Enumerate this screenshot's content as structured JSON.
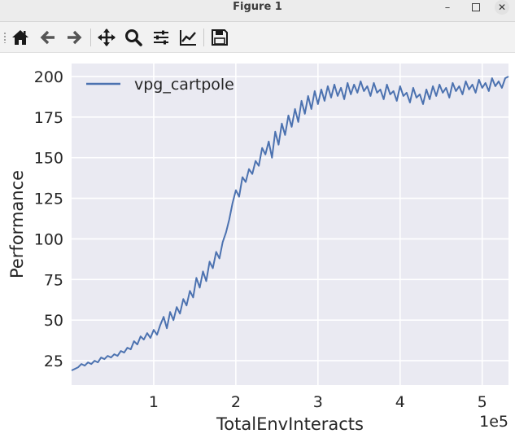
{
  "window": {
    "title": "Figure 1",
    "controls": [
      "minimize-icon",
      "maximize-icon",
      "close-icon"
    ]
  },
  "toolbar": {
    "buttons": [
      {
        "name": "home-button",
        "icon": "home-icon"
      },
      {
        "name": "back-button",
        "icon": "arrow-left-icon"
      },
      {
        "name": "forward-button",
        "icon": "arrow-right-icon"
      },
      {
        "name": "pan-button",
        "icon": "move-icon"
      },
      {
        "name": "zoom-button",
        "icon": "magnifier-icon"
      },
      {
        "name": "subplots-button",
        "icon": "sliders-icon"
      },
      {
        "name": "edit-axes-button",
        "icon": "line-chart-icon"
      },
      {
        "name": "save-button",
        "icon": "floppy-disk-icon"
      }
    ]
  },
  "colors": {
    "plot_background": "#EAEAF2",
    "grid": "#FFFFFF",
    "line": "#4C72B0",
    "text": "#262626"
  },
  "chart_data": {
    "type": "line",
    "title": "",
    "xlabel": "TotalEnvInteracts",
    "ylabel": "Performance",
    "x_offset_label": "1e5",
    "xlim": [
      0.0,
      5.32
    ],
    "ylim": [
      10,
      208
    ],
    "xticks": [
      1,
      2,
      3,
      4,
      5
    ],
    "xtick_labels": [
      "1",
      "2",
      "3",
      "4",
      "5"
    ],
    "yticks": [
      25,
      50,
      75,
      100,
      125,
      150,
      175,
      200
    ],
    "ytick_labels": [
      "25",
      "50",
      "75",
      "100",
      "125",
      "150",
      "175",
      "200"
    ],
    "grid": true,
    "legend": {
      "position": "upper-left",
      "entries": [
        "vpg_cartpole"
      ]
    },
    "series": [
      {
        "name": "vpg_cartpole",
        "x": [
          0.0,
          0.04,
          0.08,
          0.12,
          0.16,
          0.2,
          0.24,
          0.28,
          0.32,
          0.36,
          0.4,
          0.44,
          0.48,
          0.52,
          0.56,
          0.6,
          0.64,
          0.68,
          0.72,
          0.76,
          0.8,
          0.84,
          0.88,
          0.92,
          0.96,
          1.0,
          1.04,
          1.08,
          1.12,
          1.16,
          1.2,
          1.24,
          1.28,
          1.32,
          1.36,
          1.4,
          1.44,
          1.48,
          1.52,
          1.56,
          1.6,
          1.64,
          1.68,
          1.72,
          1.76,
          1.8,
          1.84,
          1.88,
          1.92,
          1.96,
          2.0,
          2.04,
          2.08,
          2.12,
          2.16,
          2.2,
          2.24,
          2.28,
          2.32,
          2.36,
          2.4,
          2.44,
          2.48,
          2.52,
          2.56,
          2.6,
          2.64,
          2.68,
          2.72,
          2.76,
          2.8,
          2.84,
          2.88,
          2.92,
          2.96,
          3.0,
          3.04,
          3.08,
          3.12,
          3.16,
          3.2,
          3.24,
          3.28,
          3.32,
          3.36,
          3.4,
          3.44,
          3.48,
          3.52,
          3.56,
          3.6,
          3.64,
          3.68,
          3.72,
          3.76,
          3.8,
          3.84,
          3.88,
          3.92,
          3.96,
          4.0,
          4.04,
          4.08,
          4.12,
          4.16,
          4.2,
          4.24,
          4.28,
          4.32,
          4.36,
          4.4,
          4.44,
          4.48,
          4.52,
          4.56,
          4.6,
          4.64,
          4.68,
          4.72,
          4.76,
          4.8,
          4.84,
          4.88,
          4.92,
          4.96,
          5.0,
          5.04,
          5.08,
          5.12,
          5.16,
          5.2,
          5.24,
          5.28,
          5.32
        ],
        "y": [
          19,
          20,
          21,
          23,
          22,
          24,
          23,
          25,
          24,
          27,
          26,
          28,
          27,
          29,
          28,
          31,
          30,
          33,
          32,
          37,
          35,
          40,
          38,
          42,
          39,
          44,
          41,
          47,
          52,
          45,
          55,
          50,
          58,
          54,
          63,
          59,
          68,
          64,
          76,
          70,
          80,
          74,
          86,
          82,
          92,
          88,
          98,
          104,
          112,
          122,
          130,
          126,
          138,
          135,
          143,
          140,
          148,
          145,
          156,
          152,
          160,
          150,
          166,
          158,
          171,
          164,
          176,
          169,
          180,
          172,
          185,
          177,
          188,
          180,
          191,
          183,
          192,
          185,
          194,
          187,
          195,
          188,
          193,
          186,
          196,
          189,
          195,
          190,
          197,
          191,
          194,
          188,
          196,
          190,
          192,
          186,
          195,
          189,
          191,
          185,
          194,
          188,
          190,
          184,
          193,
          187,
          189,
          183,
          192,
          186,
          194,
          188,
          195,
          190,
          193,
          187,
          196,
          191,
          194,
          189,
          197,
          192,
          195,
          190,
          198,
          193,
          196,
          191,
          199,
          194,
          197,
          193,
          199,
          200
        ]
      }
    ]
  }
}
